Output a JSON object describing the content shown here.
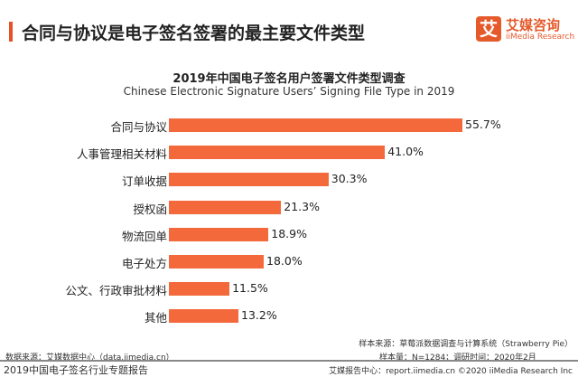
{
  "header": {
    "title": "合同与协议是电子签名签署的最主要文件类型"
  },
  "logo": {
    "mark": "艾",
    "cn": "艾媒咨询",
    "en": "iiMedia Research"
  },
  "chart_data": {
    "type": "bar",
    "orientation": "horizontal",
    "title": "2019年中国电子签名用户签署文件类型调查",
    "subtitle": "Chinese Electronic Signature Users’ Signing File Type in 2019",
    "categories": [
      "合同与协议",
      "人事管理相关材料",
      "订单收据",
      "授权函",
      "物流回单",
      "电子处方",
      "公文、行政审批材料",
      "其他"
    ],
    "values": [
      55.7,
      41.0,
      30.3,
      21.3,
      18.9,
      18.0,
      11.5,
      13.2
    ],
    "labels": [
      "55.7%",
      "41.0%",
      "30.3%",
      "21.3%",
      "18.9%",
      "18.0%",
      "11.5%",
      "13.2%"
    ],
    "unit": "%",
    "color": "#f4693b",
    "grid": false
  },
  "footer": {
    "source": "数据来源：艾媒数据中心（data.iimedia.cn）",
    "sample_source": "样本来源：草莓派数据调查与计算系统（Strawberry Pie）",
    "sample": "样本量：N=1284；调研时间：2020年2月",
    "report": "2019中国电子签名行业专题报告",
    "copyright": "艾媒报告中心：report.iimedia.cn ©2020 iiMedia Research Inc"
  }
}
